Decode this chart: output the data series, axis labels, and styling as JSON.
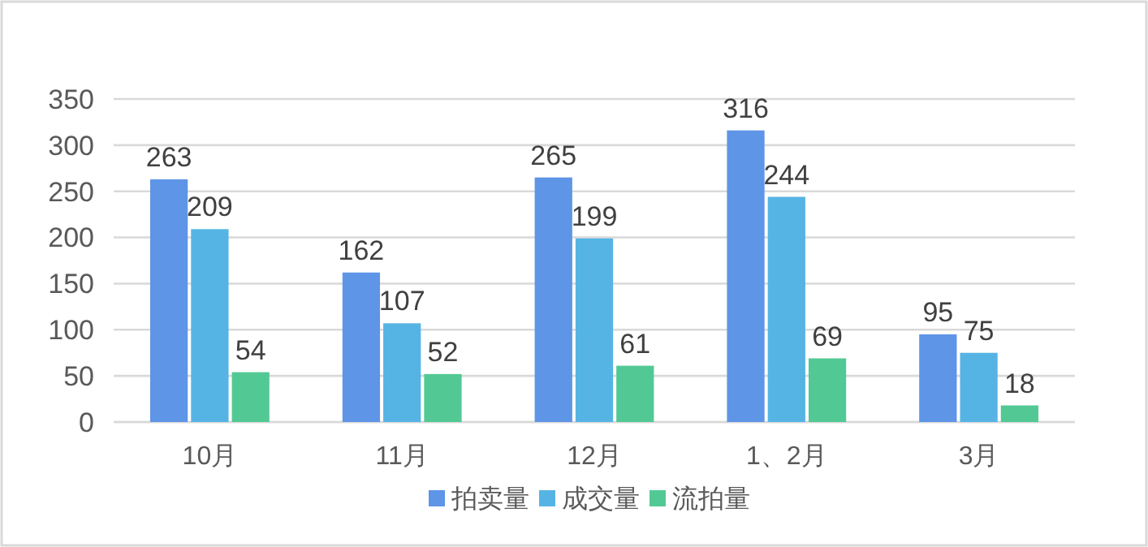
{
  "chart_data": {
    "type": "bar",
    "categories": [
      "10月",
      "11月",
      "12月",
      "1、2月",
      "3月"
    ],
    "series": [
      {
        "name": "拍卖量",
        "color": "#5e95e6",
        "values": [
          263,
          162,
          265,
          316,
          95
        ]
      },
      {
        "name": "成交量",
        "color": "#56b4e4",
        "values": [
          209,
          107,
          199,
          244,
          75
        ]
      },
      {
        "name": "流拍量",
        "color": "#52c994",
        "values": [
          54,
          52,
          61,
          69,
          18
        ]
      }
    ],
    "ylim": [
      0,
      350
    ],
    "yticks": [
      0,
      50,
      100,
      150,
      200,
      250,
      300,
      350
    ],
    "grid": "y",
    "legend": "bottom",
    "data_labels": true
  }
}
